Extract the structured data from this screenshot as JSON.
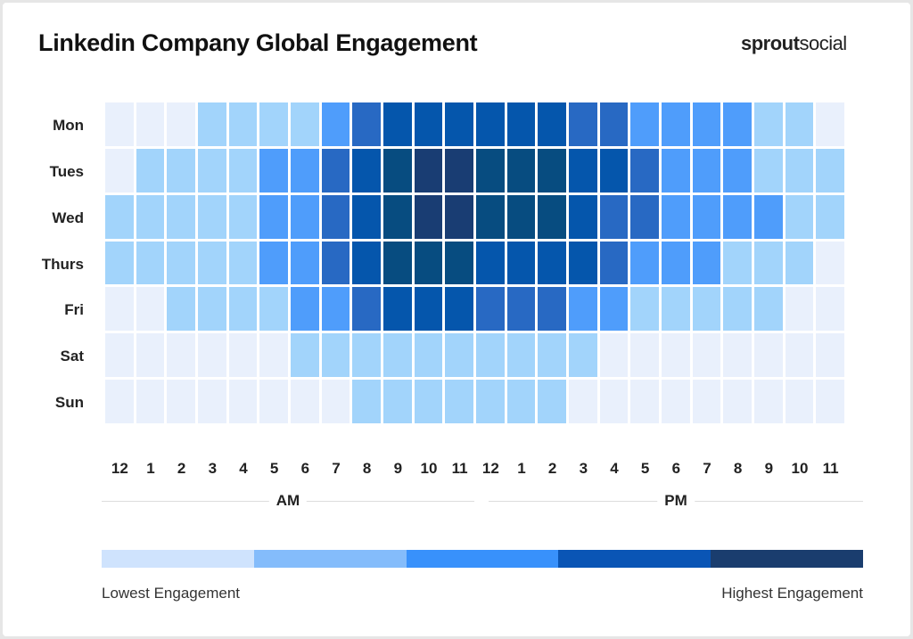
{
  "chart_data": {
    "type": "heatmap",
    "title": "Linkedin Company Global Engagement",
    "rows": [
      "Mon",
      "Tues",
      "Wed",
      "Thurs",
      "Fri",
      "Sat",
      "Sun"
    ],
    "columns": [
      "12",
      "1",
      "2",
      "3",
      "4",
      "5",
      "6",
      "7",
      "8",
      "9",
      "10",
      "11",
      "12",
      "1",
      "2",
      "3",
      "4",
      "5",
      "6",
      "7",
      "8",
      "9",
      "10",
      "11"
    ],
    "column_groups": [
      {
        "label": "AM",
        "span": 12
      },
      {
        "label": "PM",
        "span": 12
      }
    ],
    "value_scale": "engagement level 0 (lowest) to 6 (highest)",
    "values": [
      [
        0,
        0,
        0,
        1,
        1,
        1,
        1,
        2,
        3,
        4,
        4,
        4,
        4,
        4,
        4,
        3,
        3,
        2,
        2,
        2,
        2,
        1,
        1,
        0
      ],
      [
        0,
        1,
        1,
        1,
        1,
        2,
        2,
        3,
        4,
        5,
        6,
        6,
        5,
        5,
        5,
        4,
        4,
        3,
        2,
        2,
        2,
        1,
        1,
        1
      ],
      [
        1,
        1,
        1,
        1,
        1,
        2,
        2,
        3,
        4,
        5,
        6,
        6,
        5,
        5,
        5,
        4,
        3,
        3,
        2,
        2,
        2,
        2,
        1,
        1
      ],
      [
        1,
        1,
        1,
        1,
        1,
        2,
        2,
        3,
        4,
        5,
        5,
        5,
        4,
        4,
        4,
        4,
        3,
        2,
        2,
        2,
        1,
        1,
        1,
        0
      ],
      [
        0,
        0,
        1,
        1,
        1,
        1,
        2,
        2,
        3,
        4,
        4,
        4,
        3,
        3,
        3,
        2,
        2,
        1,
        1,
        1,
        1,
        1,
        0,
        0
      ],
      [
        0,
        0,
        0,
        0,
        0,
        0,
        1,
        1,
        1,
        1,
        1,
        1,
        1,
        1,
        1,
        1,
        0,
        0,
        0,
        0,
        0,
        0,
        0,
        0
      ],
      [
        0,
        0,
        0,
        0,
        0,
        0,
        0,
        0,
        1,
        1,
        1,
        1,
        1,
        1,
        1,
        0,
        0,
        0,
        0,
        0,
        0,
        0,
        0,
        0
      ]
    ],
    "level_colors": [
      "#e9f0fc",
      "#a2d4fb",
      "#4f9dfb",
      "#2869c3",
      "#0556ac",
      "#074c80",
      "#193d73"
    ],
    "legend": {
      "colors": [
        "#cfe3fd",
        "#84bcfb",
        "#3891fb",
        "#0a55b5",
        "#1a3d6e"
      ],
      "low_label": "Lowest Engagement",
      "high_label": "Highest Engagement"
    }
  },
  "brand": {
    "logo_bold": "sprout",
    "logo_regular": "social"
  }
}
